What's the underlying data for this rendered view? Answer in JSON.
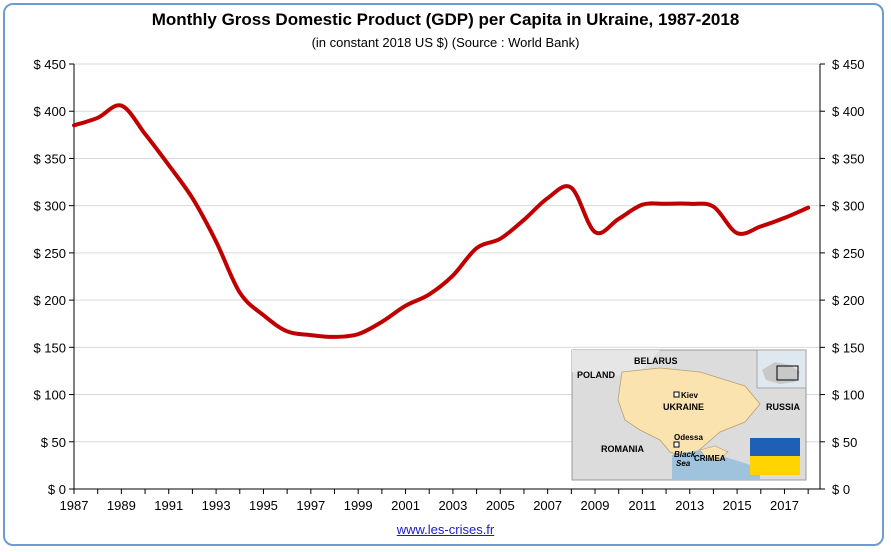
{
  "title": "Monthly Gross Domestic Product (GDP) per Capita in Ukraine, 1987-2018",
  "subtitle": "(in constant 2018 US $) (Source : World Bank)",
  "footer": "www.les-crises.fr",
  "map": {
    "labels": [
      "BELARUS",
      "POLAND",
      "UKRAINE",
      "RUSSIA",
      "ROMANIA",
      "Kiev",
      "Odessa",
      "Black",
      "Sea",
      "CRIMEA"
    ],
    "flag_colors": [
      "#1f5fb5",
      "#ffd400"
    ]
  },
  "colors": {
    "line": "#c00000",
    "grid": "#d9d9d9",
    "frame": "#6f9bd0",
    "map_ukraine": "#fbe3b0",
    "map_land": "#dcdcdc",
    "map_sea": "#9fc3dc"
  },
  "chart_data": {
    "type": "line",
    "title": "Monthly Gross Domestic Product (GDP) per Capita in Ukraine, 1987-2018",
    "subtitle": "(in constant 2018 US $) (Source : World Bank)",
    "xlabel": "",
    "ylabel": "",
    "xlim": [
      1987,
      2018.5
    ],
    "ylim": [
      0,
      450
    ],
    "grid": true,
    "y_ticks": [
      0,
      50,
      100,
      150,
      200,
      250,
      300,
      350,
      400,
      450
    ],
    "y_tick_labels": [
      "$ 0",
      "$ 50",
      "$ 100",
      "$ 150",
      "$ 200",
      "$ 250",
      "$ 300",
      "$ 350",
      "$ 400",
      "$ 450"
    ],
    "x_ticks": [
      1987,
      1989,
      1991,
      1993,
      1995,
      1997,
      1999,
      2001,
      2003,
      2005,
      2007,
      2009,
      2011,
      2013,
      2015,
      2017
    ],
    "x_tick_labels": [
      "1987",
      "1989",
      "1991",
      "1993",
      "1995",
      "1997",
      "1999",
      "2001",
      "2003",
      "2005",
      "2007",
      "2009",
      "2011",
      "2013",
      "2015",
      "2017"
    ],
    "series": [
      {
        "x": [
          1987,
          1988,
          1989,
          1990,
          1991,
          1992,
          1993,
          1994,
          1995,
          1996,
          1997,
          1998,
          1999,
          2000,
          2001,
          2002,
          2003,
          2004,
          2005,
          2006,
          2007,
          2008,
          2009,
          2010,
          2011,
          2012,
          2013,
          2014,
          2015,
          2016,
          2017,
          2018
        ],
        "values": [
          385,
          393,
          406,
          376,
          343,
          308,
          262,
          208,
          184,
          167,
          163,
          161,
          164,
          177,
          194,
          206,
          226,
          255,
          265,
          285,
          308,
          319,
          272,
          286,
          301,
          302,
          302,
          299,
          271,
          278,
          287,
          298
        ]
      }
    ]
  }
}
